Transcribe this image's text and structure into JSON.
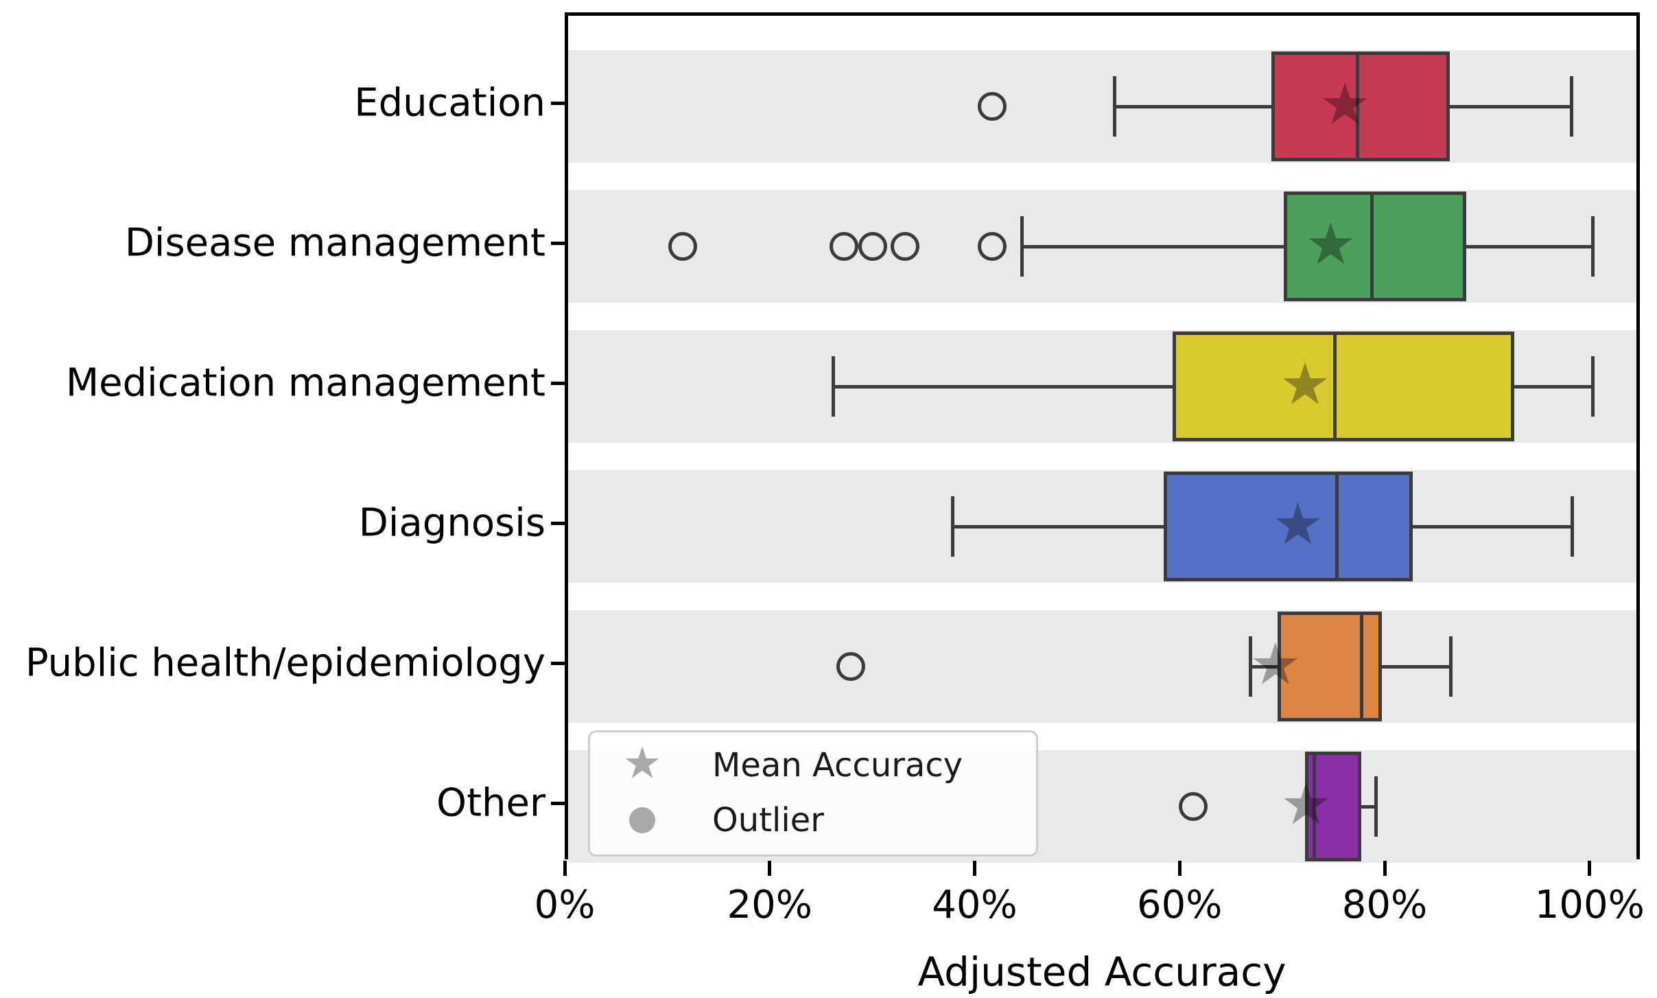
{
  "chart_data": {
    "type": "boxplot",
    "orientation": "horizontal",
    "title": "",
    "xlabel": "Adjusted Accuracy",
    "ylabel": "",
    "xlim": [
      0,
      104.9
    ],
    "x_unit": "%",
    "grid": false,
    "x_ticks": [
      {
        "value": 0,
        "label": "0%"
      },
      {
        "value": 20,
        "label": "20%"
      },
      {
        "value": 40,
        "label": "40%"
      },
      {
        "value": 60,
        "label": "60%"
      },
      {
        "value": 80,
        "label": "80%"
      },
      {
        "value": 100,
        "label": "100%"
      }
    ],
    "legend": {
      "position": "lower left",
      "mean_label": "Mean Accuracy",
      "outlier_label": "Outlier",
      "marker_color": "#a9a9a9"
    },
    "style": {
      "band_color": "#e9e9e9",
      "edge_color": "#3b3b3b",
      "spine_color": "#000000",
      "mean_marker": "star",
      "outlier_marker": "open-circle"
    },
    "rows": [
      {
        "category": "Education",
        "color": "#c73953",
        "whisker_low": 53.3,
        "q1": 68.6,
        "median": 77.0,
        "q3": 86.0,
        "whisker_high": 97.9,
        "mean": 75.8,
        "outliers": [
          41.4
        ]
      },
      {
        "category": "Disease management",
        "color": "#4da05c",
        "whisker_low": 44.3,
        "q1": 69.8,
        "median": 78.4,
        "q3": 87.6,
        "whisker_high": 100.0,
        "mean": 74.4,
        "outliers": [
          11.2,
          26.9,
          29.7,
          32.9,
          41.4
        ]
      },
      {
        "category": "Medication management",
        "color": "#d9ca30",
        "whisker_low": 25.9,
        "q1": 59.0,
        "median": 74.8,
        "q3": 92.3,
        "whisker_high": 100.0,
        "mean": 71.9,
        "outliers": []
      },
      {
        "category": "Diagnosis",
        "color": "#5570c7",
        "whisker_low": 37.5,
        "q1": 58.1,
        "median": 75.0,
        "q3": 82.4,
        "whisker_high": 98.0,
        "mean": 71.2,
        "outliers": []
      },
      {
        "category": "Public health/epidemiology",
        "color": "#dd8544",
        "whisker_low": 66.6,
        "q1": 69.2,
        "median": 77.4,
        "q3": 79.4,
        "whisker_high": 86.1,
        "mean": 69.0,
        "outliers": [
          27.6
        ]
      },
      {
        "category": "Other",
        "color": "#8a2fa8",
        "whisker_low": 71.9,
        "q1": 71.9,
        "median": 72.8,
        "q3": 77.4,
        "whisker_high": 78.8,
        "mean": 72.0,
        "outliers": [
          61.0
        ]
      }
    ]
  }
}
